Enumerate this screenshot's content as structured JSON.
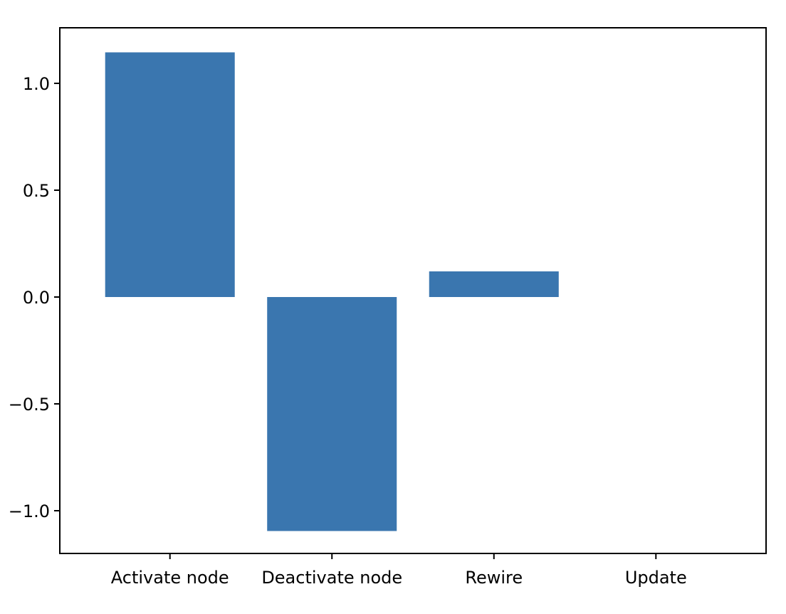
{
  "chart_data": {
    "type": "bar",
    "categories": [
      "Activate node",
      "Deactivate node",
      "Rewire",
      "Update"
    ],
    "values": [
      1.145,
      -1.095,
      0.12,
      0.0
    ],
    "ylim": [
      -1.2,
      1.26
    ],
    "yticks": [
      -1.0,
      -0.5,
      0.0,
      0.5,
      1.0
    ],
    "ytick_labels": [
      "−1.0",
      "−0.5",
      "0.0",
      "0.5",
      "1.0"
    ],
    "bar_color": "#3a76af",
    "grid": false,
    "title": "",
    "xlabel": "",
    "ylabel": ""
  }
}
